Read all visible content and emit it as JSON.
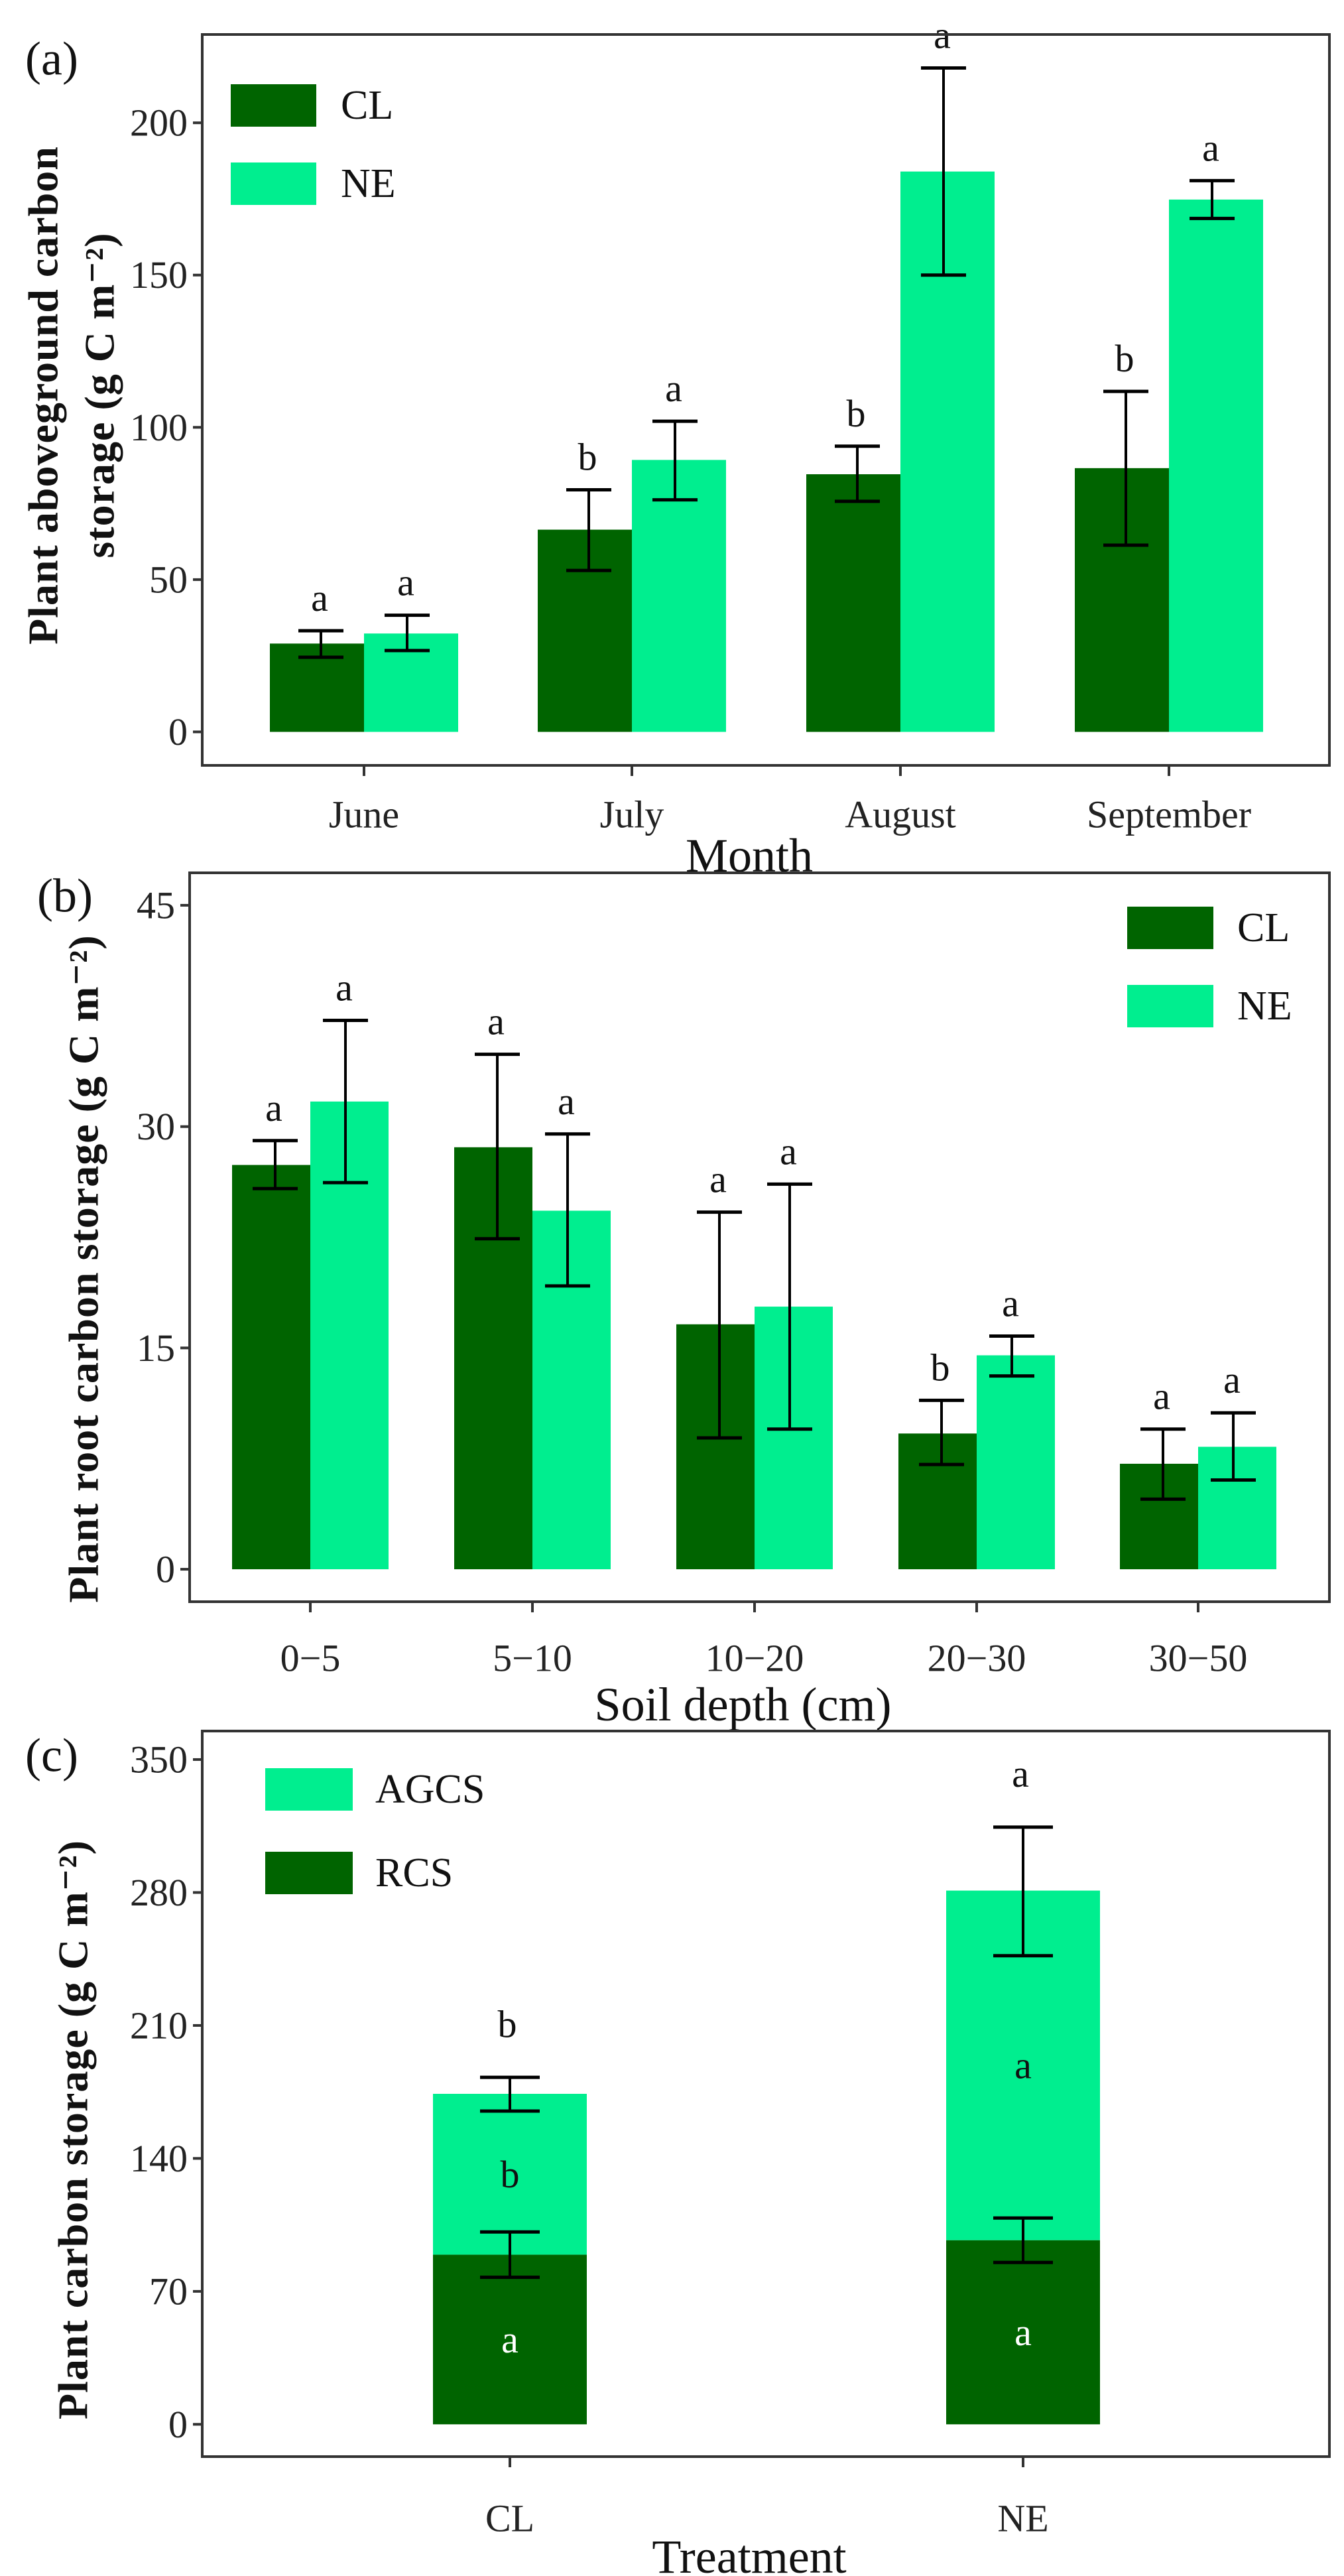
{
  "colors": {
    "CL": "#006400",
    "NE": "#00ee8f",
    "RCS": "#006400",
    "AGCS": "#00ee8f",
    "frame": "#333333"
  },
  "chart_data": [
    {
      "panel": "(a)",
      "type": "bar",
      "xlabel": "Month",
      "ylabel": [
        "Plant aboveground carbon",
        "storage (g C m⁻²)"
      ],
      "ylim": [
        -11,
        229
      ],
      "yticks": [
        0,
        50,
        100,
        150,
        200
      ],
      "categories": [
        "June",
        "July",
        "August",
        "September"
      ],
      "legend": [
        "CL",
        "NE"
      ],
      "legend_position": "top-left",
      "series": [
        {
          "name": "CL",
          "values": [
            29,
            66.4,
            84.6,
            86.6
          ],
          "err_low": [
            24.5,
            53,
            75.7,
            61.3
          ],
          "err_high": [
            33.2,
            79.5,
            93.8,
            111.8
          ],
          "letters": [
            "a",
            "b",
            "b",
            "b"
          ]
        },
        {
          "name": "NE",
          "values": [
            32.3,
            89.3,
            184,
            174.8
          ],
          "err_low": [
            26.7,
            76.2,
            150,
            168.6
          ],
          "err_high": [
            38.3,
            102,
            218,
            181
          ],
          "letters": [
            "a",
            "a",
            "a",
            "a"
          ]
        }
      ]
    },
    {
      "panel": "(b)",
      "type": "bar",
      "xlabel": "Soil depth (cm)",
      "ylabel": [
        "Plant root carbon storage (g C m⁻²)"
      ],
      "ylim": [
        -2.2,
        47.2
      ],
      "yticks": [
        0,
        15,
        30,
        45
      ],
      "categories": [
        "0−5",
        "5−10",
        "10−20",
        "20−30",
        "30−50"
      ],
      "legend": [
        "CL",
        "NE"
      ],
      "legend_position": "top-right",
      "series": [
        {
          "name": "CL",
          "values": [
            27.4,
            28.6,
            16.6,
            9.2,
            7.15
          ],
          "err_low": [
            25.8,
            22.4,
            8.9,
            7.1,
            4.75
          ],
          "err_high": [
            29.05,
            34.9,
            24.2,
            11.45,
            9.5
          ],
          "letters": [
            "a",
            "a",
            "a",
            "b",
            "a"
          ]
        },
        {
          "name": "NE",
          "values": [
            31.7,
            24.3,
            17.8,
            14.5,
            8.3
          ],
          "err_low": [
            26.2,
            19.2,
            9.5,
            13.1,
            6.05
          ],
          "err_high": [
            37.2,
            29.5,
            26.1,
            15.8,
            10.6
          ],
          "letters": [
            "a",
            "a",
            "a",
            "a",
            "a"
          ]
        }
      ]
    },
    {
      "panel": "(c)",
      "type": "bar",
      "stacked": true,
      "xlabel": "Treatment",
      "ylabel": [
        "Plant carbon storage (g C m⁻²)"
      ],
      "ylim": [
        -17,
        365
      ],
      "yticks": [
        0,
        70,
        140,
        210,
        280,
        350
      ],
      "categories": [
        "CL",
        "NE"
      ],
      "legend": [
        "AGCS",
        "RCS"
      ],
      "legend_position": "top-left",
      "series": [
        {
          "name": "RCS",
          "values": [
            89.3,
            96.9
          ],
          "err_low": [
            77.4,
            85.2
          ],
          "err_high": [
            101.3,
            108.6
          ],
          "letters": [
            "a",
            "a"
          ]
        },
        {
          "name": "AGCS",
          "cumulative_top": [
            174,
            281
          ],
          "err_low": [
            164.9,
            246.7
          ],
          "err_high": [
            182.7,
            314.4
          ],
          "letters": [
            "b",
            "a"
          ]
        }
      ],
      "total_letters": [
        "b",
        "a"
      ]
    }
  ]
}
